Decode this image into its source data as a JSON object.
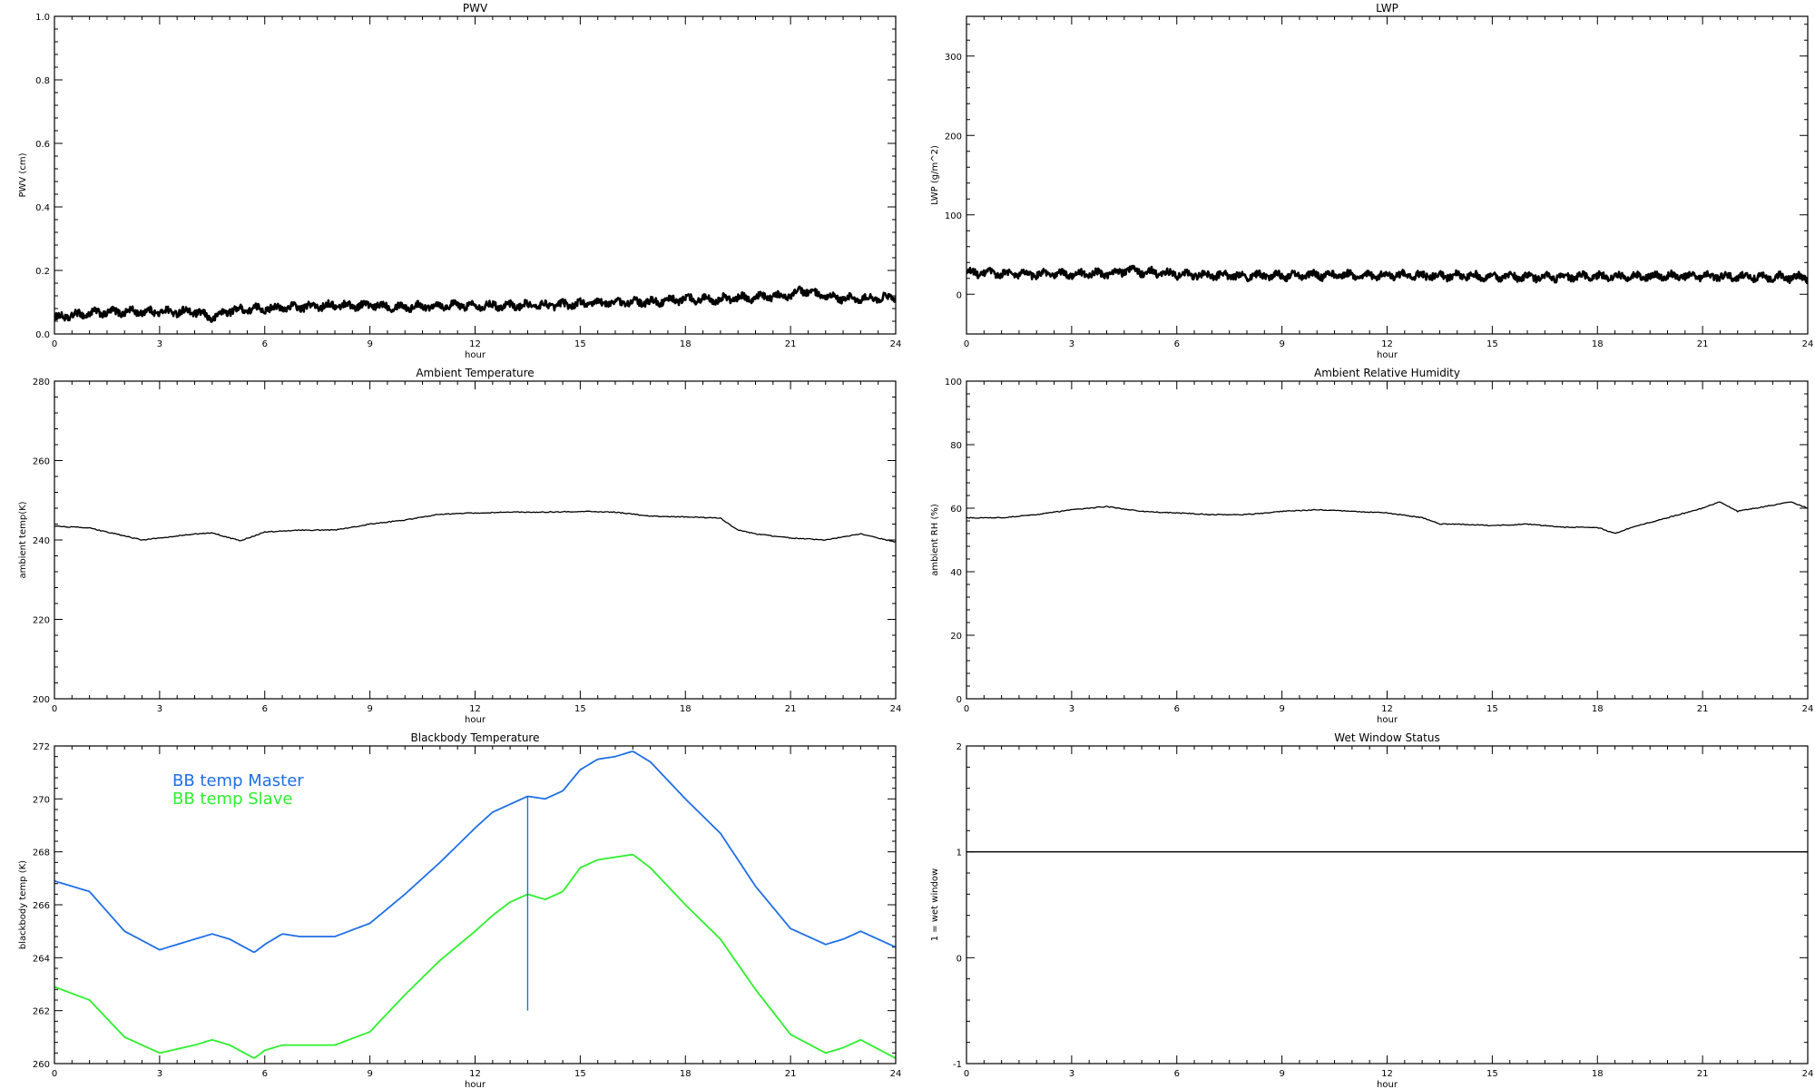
{
  "chart_data": [
    {
      "id": "pwv",
      "type": "line",
      "title": "PWV",
      "xlabel": "hour",
      "ylabel": "PWV (cm)",
      "xlim": [
        0,
        24
      ],
      "ylim": [
        0,
        1.0
      ],
      "xticks": [
        0,
        3,
        6,
        9,
        12,
        15,
        18,
        21,
        24
      ],
      "yticks": [
        0.0,
        0.2,
        0.4,
        0.6,
        0.8,
        1.0
      ],
      "ytick_labels": [
        "0.0",
        "0.2",
        "0.4",
        "0.6",
        "0.8",
        "1.0"
      ],
      "grid": false,
      "series": [
        {
          "color": "#000000",
          "style": "noisy-thick",
          "x": [
            0,
            1,
            2,
            3,
            4,
            4.5,
            5,
            6,
            7,
            8,
            9,
            10,
            11,
            12,
            13,
            14,
            15,
            16,
            17,
            18,
            19,
            20,
            21,
            21.3,
            22,
            23,
            24
          ],
          "y": [
            0.05,
            0.065,
            0.07,
            0.07,
            0.07,
            0.05,
            0.075,
            0.08,
            0.085,
            0.09,
            0.09,
            0.085,
            0.09,
            0.09,
            0.09,
            0.09,
            0.095,
            0.1,
            0.1,
            0.11,
            0.11,
            0.115,
            0.12,
            0.14,
            0.115,
            0.11,
            0.115
          ]
        }
      ]
    },
    {
      "id": "lwp",
      "type": "line",
      "title": "LWP",
      "xlabel": "hour",
      "ylabel": "LWP (g/m^2)",
      "xlim": [
        0,
        24
      ],
      "ylim": [
        -50,
        350
      ],
      "xticks": [
        0,
        3,
        6,
        9,
        12,
        15,
        18,
        21,
        24
      ],
      "yticks": [
        0,
        100,
        200,
        300
      ],
      "ytick_labels": [
        "0",
        "100",
        "200",
        "300"
      ],
      "grid": false,
      "series": [
        {
          "color": "#000000",
          "style": "noisy-thick",
          "x": [
            0,
            2,
            4,
            4.6,
            6,
            8,
            10,
            12,
            14,
            16,
            18,
            20,
            22,
            24
          ],
          "y": [
            27,
            25,
            26,
            30,
            25,
            23,
            24,
            24,
            23,
            22,
            22,
            23,
            22,
            21
          ]
        }
      ]
    },
    {
      "id": "ambient_temp",
      "type": "line",
      "title": "Ambient Temperature",
      "xlabel": "hour",
      "ylabel": "ambient temp(K)",
      "xlim": [
        0,
        24
      ],
      "ylim": [
        200,
        280
      ],
      "xticks": [
        0,
        3,
        6,
        9,
        12,
        15,
        18,
        21,
        24
      ],
      "yticks": [
        200,
        220,
        240,
        260,
        280
      ],
      "ytick_labels": [
        "200",
        "220",
        "240",
        "260",
        "280"
      ],
      "grid": false,
      "series": [
        {
          "color": "#000000",
          "style": "thin",
          "x": [
            0,
            1,
            2,
            2.5,
            3,
            4,
            4.5,
            5,
            5.3,
            6,
            7,
            8,
            9,
            10,
            11,
            12,
            13,
            14,
            15,
            16,
            17,
            18,
            19,
            19.5,
            20,
            21,
            22,
            23,
            24
          ],
          "y": [
            243.5,
            243,
            241,
            240,
            240.5,
            241.5,
            241.8,
            240.5,
            239.8,
            242,
            242.5,
            242.5,
            244,
            245,
            246.5,
            246.8,
            247,
            247,
            247.2,
            247,
            246,
            245.8,
            245.5,
            242.5,
            241.5,
            240.5,
            240,
            241.5,
            239.5
          ]
        }
      ]
    },
    {
      "id": "ambient_rh",
      "type": "line",
      "title": "Ambient Relative Humidity",
      "xlabel": "hour",
      "ylabel": "ambient RH (%)",
      "xlim": [
        0,
        24
      ],
      "ylim": [
        0,
        100
      ],
      "xticks": [
        0,
        3,
        6,
        9,
        12,
        15,
        18,
        21,
        24
      ],
      "yticks": [
        0,
        20,
        40,
        60,
        80,
        100
      ],
      "ytick_labels": [
        "0",
        "20",
        "40",
        "60",
        "80",
        "100"
      ],
      "grid": false,
      "series": [
        {
          "color": "#000000",
          "style": "thin",
          "x": [
            0,
            1,
            2,
            3,
            4,
            5,
            6,
            7,
            8,
            9,
            10,
            11,
            12,
            13,
            13.5,
            14,
            15,
            16,
            17,
            18,
            18.5,
            19,
            20,
            21,
            21.5,
            22,
            23,
            23.5,
            24
          ],
          "y": [
            57,
            57,
            58,
            59.5,
            60.5,
            59,
            58.5,
            58,
            58,
            59,
            59.5,
            59,
            58.5,
            57,
            55,
            55,
            54.5,
            55,
            54,
            54,
            52,
            54,
            57,
            60,
            62,
            59,
            61,
            62,
            60
          ]
        }
      ]
    },
    {
      "id": "bb_temp",
      "type": "line",
      "title": "Blackbody Temperature",
      "xlabel": "hour",
      "ylabel": "blackbody temp (K)",
      "xlim": [
        0,
        24
      ],
      "ylim": [
        260,
        272
      ],
      "xticks": [
        0,
        3,
        6,
        9,
        12,
        15,
        18,
        21,
        24
      ],
      "yticks": [
        260,
        262,
        264,
        266,
        268,
        270,
        272
      ],
      "ytick_labels": [
        "260",
        "262",
        "264",
        "266",
        "268",
        "270",
        "272"
      ],
      "grid": false,
      "legend": [
        "BB temp Master",
        "BB temp Slave"
      ],
      "legend_position": "upper-left",
      "series": [
        {
          "name": "BB temp Master",
          "color": "#1e6fe6",
          "style": "medium",
          "x": [
            0,
            1,
            2,
            3,
            4,
            4.5,
            5,
            5.7,
            6,
            6.5,
            7,
            8,
            9,
            10,
            11,
            12,
            12.5,
            13,
            13.5,
            14,
            14.5,
            15,
            15.5,
            16,
            16.5,
            17,
            18,
            19,
            20,
            21,
            22,
            22.5,
            23,
            24
          ],
          "y": [
            266.9,
            266.5,
            265,
            264.3,
            264.7,
            264.9,
            264.7,
            264.2,
            264.5,
            264.9,
            264.8,
            264.8,
            265.3,
            266.4,
            267.6,
            268.9,
            269.5,
            269.8,
            270.1,
            270,
            270.3,
            271.1,
            271.5,
            271.6,
            271.8,
            271.4,
            270,
            268.7,
            266.7,
            265.1,
            264.5,
            264.7,
            265,
            264.4
          ]
        },
        {
          "name": "BB temp Slave",
          "color": "#2cf02c",
          "style": "medium",
          "x": [
            0,
            1,
            2,
            3,
            4,
            4.5,
            5,
            5.7,
            6,
            6.5,
            7,
            8,
            9,
            10,
            11,
            12,
            12.5,
            13,
            13.5,
            14,
            14.5,
            15,
            15.5,
            16,
            16.5,
            17,
            18,
            19,
            20,
            21,
            22,
            22.5,
            23,
            24
          ],
          "y": [
            262.9,
            262.4,
            261,
            260.4,
            260.7,
            260.9,
            260.7,
            260.2,
            260.5,
            260.7,
            260.7,
            260.7,
            261.2,
            262.6,
            263.9,
            265,
            265.6,
            266.1,
            266.4,
            266.2,
            266.5,
            267.4,
            267.7,
            267.8,
            267.9,
            267.4,
            266,
            264.7,
            262.8,
            261.1,
            260.4,
            260.6,
            260.9,
            260.2
          ]
        }
      ],
      "spike": {
        "x": 13.5,
        "y_from": 270.1,
        "y_to": 262,
        "color": "#1e6fe6"
      }
    },
    {
      "id": "wet_window",
      "type": "line",
      "title": "Wet Window Status",
      "xlabel": "hour",
      "ylabel": "1 = wet window",
      "xlim": [
        0,
        24
      ],
      "ylim": [
        -1,
        2
      ],
      "xticks": [
        0,
        3,
        6,
        9,
        12,
        15,
        18,
        21,
        24
      ],
      "yticks": [
        -1,
        0,
        1,
        2
      ],
      "ytick_labels": [
        "-1",
        "0",
        "1",
        "2"
      ],
      "grid": false,
      "series": [
        {
          "color": "#000000",
          "style": "thin",
          "x": [
            0,
            24
          ],
          "y": [
            1,
            1
          ]
        }
      ]
    }
  ]
}
